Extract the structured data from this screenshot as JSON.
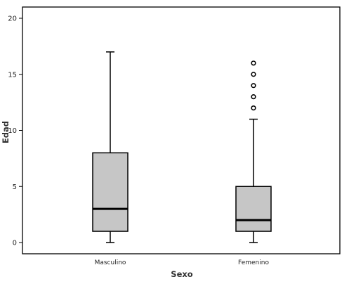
{
  "chart_data": {
    "type": "boxplot",
    "title": "",
    "xlabel": "Sexo",
    "ylabel": "Edad",
    "ylim": [
      0,
      20
    ],
    "yticks": [
      "0",
      "5",
      "10",
      "15",
      "20"
    ],
    "grid": false,
    "legend": "none",
    "categories": [
      "Masculino",
      "Femenino"
    ],
    "boxes": [
      {
        "category": "Masculino",
        "min": 0,
        "q1": 1,
        "median": 3,
        "q3": 8,
        "max": 17,
        "outliers": []
      },
      {
        "category": "Femenino",
        "min": 0,
        "q1": 1,
        "median": 2,
        "q3": 5,
        "max": 11,
        "outliers": [
          12,
          13,
          14,
          15,
          16
        ]
      }
    ],
    "colors": {
      "box_fill": "#c6c6c6",
      "stroke": "#000000",
      "outlier_fill": "#ffffff"
    }
  }
}
